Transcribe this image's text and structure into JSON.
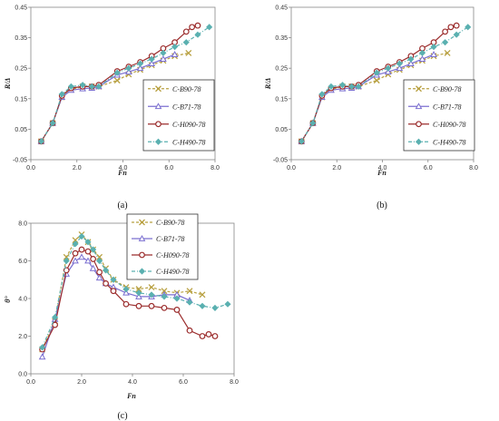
{
  "chart_data": [
    {
      "type": "line",
      "caption": "(a)",
      "xlabel": "Fn",
      "ylabel": "R/Δ",
      "xlim": [
        0,
        8
      ],
      "ylim": [
        -0.05,
        0.45
      ],
      "xticks": [
        "0.0",
        "2.0",
        "4.0",
        "6.0",
        "8.0"
      ],
      "yticks": [
        "-0.05",
        "0.05",
        "0.15",
        "0.25",
        "0.35",
        "0.45"
      ],
      "grid": false,
      "legend_position": "bottom-right",
      "series": [
        {
          "name": "C-B90-78",
          "color": "#b8a040",
          "dash": "3,2",
          "marker": "x",
          "x": [
            0.45,
            0.95,
            1.35,
            1.75,
            2.25,
            2.65,
            2.95,
            3.75,
            4.25,
            4.75,
            5.25,
            5.75,
            6.25,
            6.85
          ],
          "y": [
            0.01,
            0.07,
            0.155,
            0.18,
            0.19,
            0.19,
            0.19,
            0.21,
            0.23,
            0.245,
            0.26,
            0.275,
            0.29,
            0.3
          ]
        },
        {
          "name": "C-B71-78",
          "color": "#7b6fd0",
          "dash": "",
          "marker": "triangle",
          "x": [
            0.45,
            0.95,
            1.35,
            1.75,
            2.25,
            2.65,
            2.95,
            3.75,
            4.25,
            4.75,
            5.25,
            5.75,
            6.25
          ],
          "y": [
            0.01,
            0.07,
            0.155,
            0.178,
            0.183,
            0.185,
            0.19,
            0.228,
            0.238,
            0.25,
            0.265,
            0.28,
            0.295
          ]
        },
        {
          "name": "C-H090-78",
          "color": "#9b2c2c",
          "dash": "",
          "marker": "circle",
          "x": [
            0.45,
            0.95,
            1.35,
            1.75,
            2.25,
            2.65,
            2.95,
            3.75,
            4.25,
            4.75,
            5.25,
            5.75,
            6.25,
            6.75,
            7.0,
            7.25
          ],
          "y": [
            0.01,
            0.07,
            0.16,
            0.185,
            0.19,
            0.19,
            0.195,
            0.24,
            0.255,
            0.27,
            0.29,
            0.315,
            0.335,
            0.37,
            0.385,
            0.39
          ]
        },
        {
          "name": "C-H490-78",
          "color": "#5ab0b0",
          "dash": "4,2,1,2",
          "marker": "diamond",
          "x": [
            0.45,
            0.95,
            1.35,
            1.75,
            2.25,
            2.65,
            2.95,
            3.75,
            4.25,
            4.75,
            5.25,
            5.75,
            6.25,
            6.75,
            7.25,
            7.75
          ],
          "y": [
            0.01,
            0.07,
            0.165,
            0.19,
            0.195,
            0.19,
            0.19,
            0.235,
            0.25,
            0.265,
            0.28,
            0.3,
            0.32,
            0.335,
            0.36,
            0.385
          ]
        }
      ]
    },
    {
      "type": "line",
      "caption": "(b)",
      "xlabel": "Fn",
      "ylabel": "R/Δ",
      "xlim": [
        0,
        8
      ],
      "ylim": [
        -0.05,
        0.45
      ],
      "xticks": [
        "0.0",
        "2.0",
        "4.0",
        "6.0",
        "8.0"
      ],
      "yticks": [
        "-0.05",
        "0.05",
        "0.15",
        "0.25",
        "0.35",
        "0.45"
      ],
      "grid": false,
      "legend_position": "bottom-right",
      "series": [
        {
          "name": "C-B90-78",
          "color": "#b8a040",
          "dash": "3,2",
          "marker": "x",
          "x": [
            0.45,
            0.95,
            1.35,
            1.75,
            2.25,
            2.65,
            2.95,
            3.75,
            4.25,
            4.75,
            5.25,
            5.75,
            6.25,
            6.85
          ],
          "y": [
            0.01,
            0.07,
            0.155,
            0.18,
            0.19,
            0.19,
            0.19,
            0.21,
            0.23,
            0.245,
            0.26,
            0.275,
            0.29,
            0.3
          ]
        },
        {
          "name": "C-B71-78",
          "color": "#7b6fd0",
          "dash": "",
          "marker": "triangle",
          "x": [
            0.45,
            0.95,
            1.35,
            1.75,
            2.25,
            2.65,
            2.95,
            3.75,
            4.25,
            4.75,
            5.25,
            5.75,
            6.25
          ],
          "y": [
            0.01,
            0.07,
            0.155,
            0.178,
            0.183,
            0.185,
            0.19,
            0.228,
            0.238,
            0.25,
            0.265,
            0.28,
            0.295
          ]
        },
        {
          "name": "C-H090-78",
          "color": "#9b2c2c",
          "dash": "",
          "marker": "circle",
          "x": [
            0.45,
            0.95,
            1.35,
            1.75,
            2.25,
            2.65,
            2.95,
            3.75,
            4.25,
            4.75,
            5.25,
            5.75,
            6.25,
            6.75,
            7.0,
            7.25
          ],
          "y": [
            0.01,
            0.07,
            0.16,
            0.185,
            0.19,
            0.19,
            0.195,
            0.24,
            0.255,
            0.27,
            0.29,
            0.315,
            0.335,
            0.37,
            0.385,
            0.39
          ]
        },
        {
          "name": "C-H490-78",
          "color": "#5ab0b0",
          "dash": "4,2,1,2",
          "marker": "diamond",
          "x": [
            0.45,
            0.95,
            1.35,
            1.75,
            2.25,
            2.65,
            2.95,
            3.75,
            4.25,
            4.75,
            5.25,
            5.75,
            6.25,
            6.75,
            7.25,
            7.75
          ],
          "y": [
            0.01,
            0.07,
            0.165,
            0.19,
            0.195,
            0.19,
            0.19,
            0.235,
            0.25,
            0.265,
            0.28,
            0.3,
            0.32,
            0.335,
            0.36,
            0.385
          ]
        }
      ]
    },
    {
      "type": "line",
      "caption": "(c)",
      "xlabel": "Fn",
      "ylabel": "θ°",
      "xlim": [
        0,
        8
      ],
      "ylim": [
        0,
        8
      ],
      "xticks": [
        "0.0",
        "2.0",
        "4.0",
        "6.0",
        "8.0"
      ],
      "yticks": [
        "0.0",
        "2.0",
        "4.0",
        "6.0",
        "8.0"
      ],
      "grid": false,
      "legend_position": "top-right",
      "series": [
        {
          "name": "C-B90-78",
          "color": "#b8a040",
          "dash": "3,2",
          "marker": "x",
          "x": [
            0.45,
            0.95,
            1.4,
            1.75,
            2.0,
            2.25,
            2.45,
            2.7,
            2.95,
            3.25,
            3.75,
            4.25,
            4.75,
            5.25,
            5.75,
            6.25,
            6.75
          ],
          "y": [
            1.3,
            2.8,
            6.2,
            7.1,
            7.4,
            7.0,
            6.6,
            6.2,
            5.6,
            5.0,
            4.6,
            4.5,
            4.6,
            4.4,
            4.3,
            4.4,
            4.2
          ]
        },
        {
          "name": "C-B71-78",
          "color": "#7b6fd0",
          "dash": "",
          "marker": "triangle",
          "x": [
            0.45,
            0.95,
            1.4,
            1.75,
            2.0,
            2.25,
            2.45,
            2.7,
            2.95,
            3.25,
            3.75,
            4.25,
            4.75,
            5.25,
            5.75,
            6.25
          ],
          "y": [
            0.9,
            2.9,
            5.3,
            6.0,
            6.2,
            6.0,
            5.6,
            5.1,
            4.8,
            4.6,
            4.3,
            4.1,
            4.1,
            4.2,
            4.2,
            3.9
          ]
        },
        {
          "name": "C-H090-78",
          "color": "#9b2c2c",
          "dash": "",
          "marker": "circle",
          "x": [
            0.45,
            0.95,
            1.4,
            1.75,
            2.0,
            2.25,
            2.45,
            2.7,
            2.95,
            3.25,
            3.75,
            4.25,
            4.75,
            5.25,
            5.75,
            6.25,
            6.75,
            7.0,
            7.25
          ],
          "y": [
            1.3,
            2.6,
            5.5,
            6.4,
            6.6,
            6.5,
            6.1,
            5.4,
            4.8,
            4.4,
            3.7,
            3.6,
            3.6,
            3.5,
            3.4,
            2.3,
            2.0,
            2.1,
            2.0
          ]
        },
        {
          "name": "C-H490-78",
          "color": "#5ab0b0",
          "dash": "4,2,1,2",
          "marker": "diamond",
          "x": [
            0.45,
            0.95,
            1.4,
            1.75,
            2.0,
            2.25,
            2.45,
            2.7,
            2.95,
            3.25,
            3.75,
            4.25,
            4.75,
            5.25,
            5.75,
            6.25,
            6.75,
            7.25,
            7.75
          ],
          "y": [
            1.4,
            3.0,
            6.0,
            6.9,
            7.3,
            7.0,
            6.6,
            6.0,
            5.5,
            5.0,
            4.5,
            4.3,
            4.2,
            4.1,
            4.0,
            3.8,
            3.6,
            3.5,
            3.7
          ]
        }
      ]
    }
  ]
}
